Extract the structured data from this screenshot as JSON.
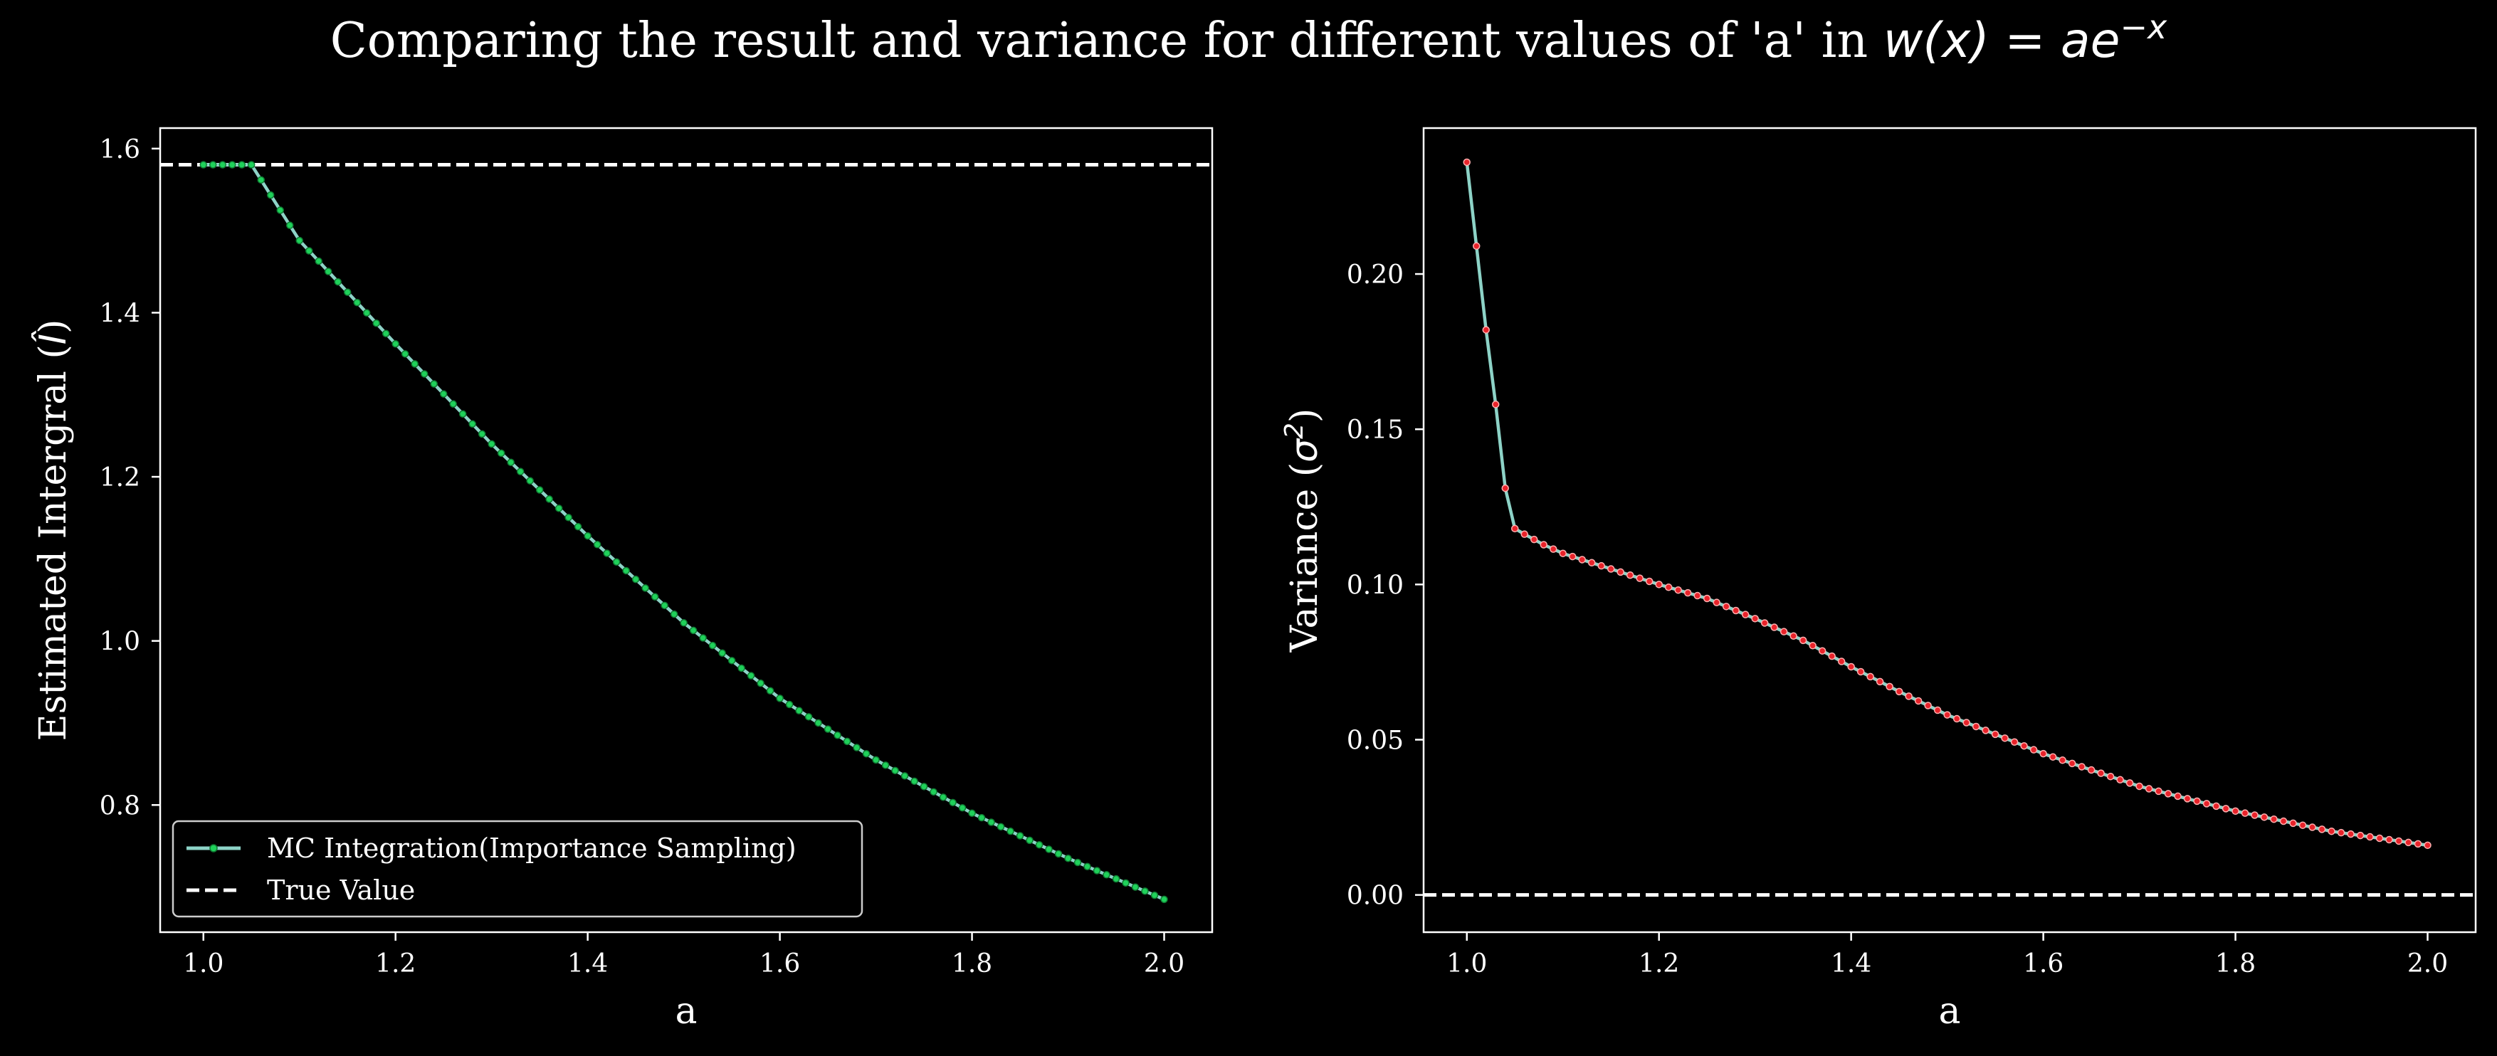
{
  "figure": {
    "title_prefix": "Comparing the result and variance for different values of 'a' in ",
    "title_math_w": "w",
    "title_math_x": "(x) = ae",
    "title_math_sup": "−x"
  },
  "colors": {
    "background": "#000000",
    "foreground": "#ffffff",
    "mc_line": "#8dd3c7",
    "mc_marker": "#1fd15a",
    "var_marker": "#e8232a",
    "true_value_line": "#ffffff"
  },
  "chart_data": [
    {
      "type": "line",
      "id": "estimate",
      "title": "",
      "xlabel": "a",
      "ylabel_prefix": "Estimated Intergral (",
      "ylabel_math": "Î",
      "ylabel_suffix": ")",
      "xlim": [
        0.955,
        2.05
      ],
      "ylim": [
        0.645,
        1.625
      ],
      "xticks": [
        1.0,
        1.2,
        1.4,
        1.6,
        1.8,
        2.0
      ],
      "xtick_labels": [
        "1.0",
        "1.2",
        "1.4",
        "1.6",
        "1.8",
        "2.0"
      ],
      "yticks": [
        0.8,
        1.0,
        1.2,
        1.4,
        1.6
      ],
      "ytick_labels": [
        "0.8",
        "1.0",
        "1.2",
        "1.4",
        "1.6"
      ],
      "grid": false,
      "legend_position": "lower-left",
      "series": [
        {
          "name": "MC Integration(Importance Sampling)",
          "style": "solid line with small circular markers",
          "x_start": 1.0,
          "x_end": 2.0,
          "num_points": 101,
          "description": "constant at 1.5803 for a <= 1.05, then decreasing smoothly to 0.685 at a = 2.0",
          "keypoints": [
            [
              1.0,
              1.5803
            ],
            [
              1.05,
              1.5803
            ],
            [
              1.1,
              1.488
            ],
            [
              1.2,
              1.362
            ],
            [
              1.3,
              1.24
            ],
            [
              1.4,
              1.128
            ],
            [
              1.5,
              1.022
            ],
            [
              1.6,
              0.93
            ],
            [
              1.7,
              0.855
            ],
            [
              1.8,
              0.79
            ],
            [
              1.9,
              0.735
            ],
            [
              2.0,
              0.685
            ]
          ]
        },
        {
          "name": "True Value",
          "style": "dashed horizontal line",
          "y": 1.5803
        }
      ]
    },
    {
      "type": "line",
      "id": "variance",
      "title": "",
      "xlabel": "a",
      "ylabel_prefix": "Variance (",
      "ylabel_math": "σ",
      "ylabel_sup": "2",
      "ylabel_suffix": ")",
      "xlim": [
        0.955,
        2.05
      ],
      "ylim": [
        -0.012,
        0.247
      ],
      "xticks": [
        1.0,
        1.2,
        1.4,
        1.6,
        1.8,
        2.0
      ],
      "xtick_labels": [
        "1.0",
        "1.2",
        "1.4",
        "1.6",
        "1.8",
        "2.0"
      ],
      "yticks": [
        0.0,
        0.05,
        0.1,
        0.15,
        0.2
      ],
      "ytick_labels": [
        "0.00",
        "0.05",
        "0.10",
        "0.15",
        "0.20"
      ],
      "grid": false,
      "series": [
        {
          "name": "Variance",
          "style": "solid line with small circular markers",
          "x_start": 1.0,
          "x_end": 2.0,
          "num_points": 101,
          "description": "steep drop from 0.236 at a = 1.0 to 0.118 at a = 1.05, then gradual decline to 0.016 at a = 2.0",
          "keypoints": [
            [
              1.0,
              0.236
            ],
            [
              1.01,
              0.209
            ],
            [
              1.02,
              0.182
            ],
            [
              1.03,
              0.158
            ],
            [
              1.04,
              0.131
            ],
            [
              1.05,
              0.118
            ],
            [
              1.06,
              0.1162
            ],
            [
              1.08,
              0.1128
            ],
            [
              1.1,
              0.11
            ],
            [
              1.15,
              0.105
            ],
            [
              1.2,
              0.1
            ],
            [
              1.25,
              0.0955
            ],
            [
              1.3,
              0.089
            ],
            [
              1.35,
              0.082
            ],
            [
              1.4,
              0.0735
            ],
            [
              1.45,
              0.0655
            ],
            [
              1.5,
              0.058
            ],
            [
              1.6,
              0.0455
            ],
            [
              1.7,
              0.035
            ],
            [
              1.8,
              0.027
            ],
            [
              1.9,
              0.0205
            ],
            [
              2.0,
              0.016
            ]
          ]
        },
        {
          "name": "Zero line",
          "style": "dashed horizontal line",
          "y": 0.0
        }
      ]
    }
  ],
  "legend": {
    "items": [
      {
        "label": "MC Integration(Importance Sampling)",
        "kind": "line-marker"
      },
      {
        "label": "True Value",
        "kind": "dashed"
      }
    ]
  }
}
